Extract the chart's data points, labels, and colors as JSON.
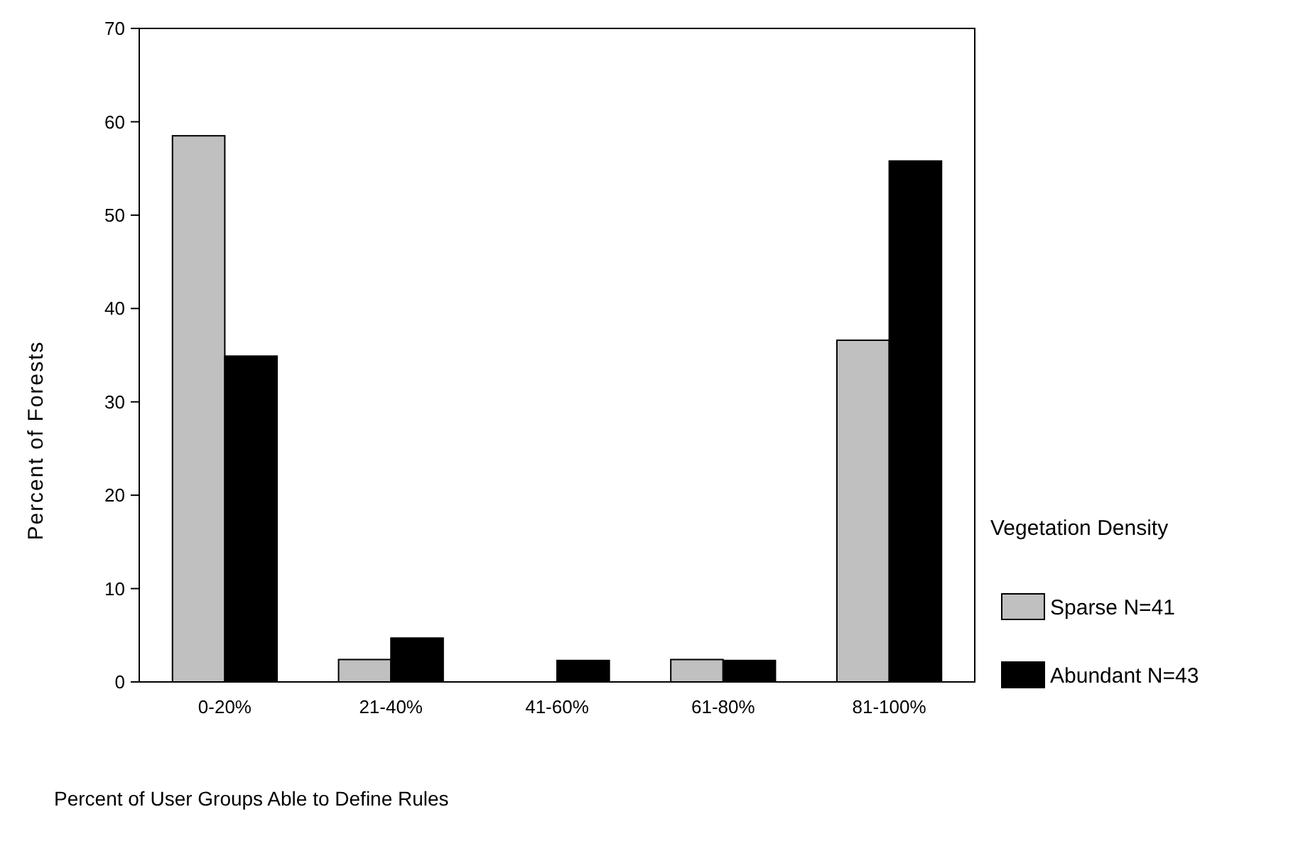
{
  "chart_data": {
    "type": "bar",
    "xlabel": "Percent of User Groups Able to Define Rules",
    "ylabel": "Percent of Forests",
    "legend_title": "Vegetation Density",
    "categories": [
      "0-20%",
      "21-40%",
      "41-60%",
      "61-80%",
      "81-100%"
    ],
    "series": [
      {
        "name": "Sparse N=41",
        "color": "#c0c0c0",
        "values": [
          58.5,
          2.4,
          0,
          2.4,
          36.6
        ]
      },
      {
        "name": "Abundant N=43",
        "color": "#000000",
        "values": [
          34.9,
          4.7,
          2.3,
          2.3,
          55.8
        ]
      }
    ],
    "ylim": [
      0,
      70
    ],
    "yticks": [
      0,
      10,
      20,
      30,
      40,
      50,
      60,
      70
    ],
    "grid": false,
    "legend": "right"
  }
}
